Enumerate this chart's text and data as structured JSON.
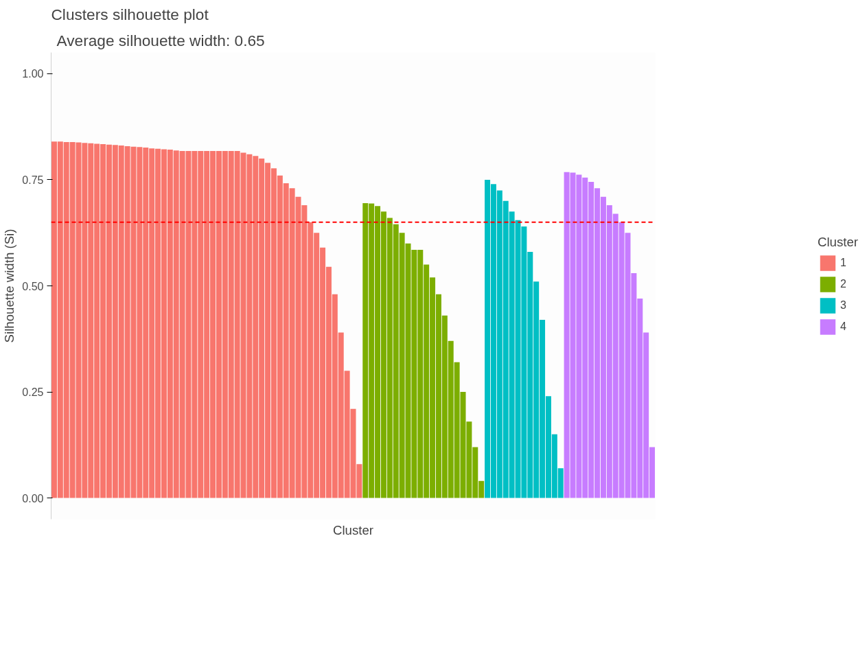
{
  "chart_data": {
    "type": "bar",
    "title": "Clusters silhouette plot",
    "subtitle": "Average silhouette width: 0.65",
    "xlabel": "Cluster",
    "ylabel": "Silhouette width (Si)",
    "legend_title": "Cluster",
    "categories": [
      null,
      null,
      null,
      null,
      null,
      null,
      null,
      null,
      null,
      null,
      null,
      null,
      null,
      null,
      null,
      null,
      null,
      null,
      null,
      null,
      null,
      null,
      null,
      null,
      null,
      null,
      null,
      null,
      null,
      null,
      null,
      null,
      null,
      null,
      null,
      null,
      null,
      null,
      null,
      null,
      null,
      null,
      null,
      null,
      null,
      null,
      null,
      null,
      null,
      null,
      null,
      null,
      null,
      null,
      null,
      null,
      null,
      null,
      null,
      null,
      null,
      null,
      null,
      null,
      null,
      null,
      null,
      null,
      null,
      null,
      null,
      null,
      null,
      null,
      null,
      null,
      null,
      null,
      null,
      null,
      null,
      null,
      null,
      null,
      null,
      null,
      null,
      null,
      null,
      null,
      null,
      null,
      null,
      null,
      null,
      null,
      null,
      null,
      null
    ],
    "series": [
      {
        "name": "1",
        "color": "#f8766d",
        "values": [
          0.84,
          0.84,
          0.839,
          0.839,
          0.838,
          0.837,
          0.836,
          0.835,
          0.834,
          0.833,
          0.832,
          0.831,
          0.829,
          0.828,
          0.827,
          0.826,
          0.824,
          0.823,
          0.822,
          0.821,
          0.819,
          0.818,
          0.818,
          0.818,
          0.818,
          0.818,
          0.818,
          0.818,
          0.818,
          0.818,
          0.818,
          0.814,
          0.81,
          0.806,
          0.8,
          0.79,
          0.777,
          0.76,
          0.742,
          0.73,
          0.71,
          0.69,
          0.65,
          0.625,
          0.59,
          0.545,
          0.48,
          0.39,
          0.3,
          0.21,
          0.08,
          null,
          null,
          null,
          null,
          null,
          null,
          null,
          null,
          null,
          null,
          null,
          null,
          null,
          null,
          null,
          null,
          null,
          null,
          null,
          null,
          null,
          null,
          null,
          null,
          null,
          null,
          null,
          null,
          null,
          null,
          null,
          null,
          null,
          null,
          null,
          null,
          null,
          null,
          null,
          null,
          null,
          null,
          null,
          null,
          null,
          null,
          null,
          null
        ]
      },
      {
        "name": "2",
        "color": "#7cae00",
        "values": [
          null,
          null,
          null,
          null,
          null,
          null,
          null,
          null,
          null,
          null,
          null,
          null,
          null,
          null,
          null,
          null,
          null,
          null,
          null,
          null,
          null,
          null,
          null,
          null,
          null,
          null,
          null,
          null,
          null,
          null,
          null,
          null,
          null,
          null,
          null,
          null,
          null,
          null,
          null,
          null,
          null,
          null,
          null,
          null,
          null,
          null,
          null,
          null,
          null,
          null,
          null,
          0.695,
          0.694,
          0.688,
          0.675,
          0.66,
          0.645,
          0.625,
          0.6,
          0.585,
          0.585,
          0.55,
          0.52,
          0.48,
          0.43,
          0.37,
          0.32,
          0.25,
          0.18,
          0.12,
          0.04,
          null,
          null,
          null,
          null,
          null,
          null,
          null,
          null,
          null,
          null,
          null,
          null,
          null,
          null,
          null,
          null,
          null,
          null,
          null,
          null,
          null,
          null,
          null,
          null,
          null,
          null,
          null,
          null
        ]
      },
      {
        "name": "3",
        "color": "#00bfc4",
        "values": [
          null,
          null,
          null,
          null,
          null,
          null,
          null,
          null,
          null,
          null,
          null,
          null,
          null,
          null,
          null,
          null,
          null,
          null,
          null,
          null,
          null,
          null,
          null,
          null,
          null,
          null,
          null,
          null,
          null,
          null,
          null,
          null,
          null,
          null,
          null,
          null,
          null,
          null,
          null,
          null,
          null,
          null,
          null,
          null,
          null,
          null,
          null,
          null,
          null,
          null,
          null,
          null,
          null,
          null,
          null,
          null,
          null,
          null,
          null,
          null,
          null,
          null,
          null,
          null,
          null,
          null,
          null,
          null,
          null,
          null,
          null,
          0.75,
          0.74,
          0.725,
          0.7,
          0.675,
          0.655,
          0.64,
          0.58,
          0.51,
          0.42,
          0.24,
          0.15,
          0.07,
          null,
          null,
          null,
          null,
          null,
          null,
          null,
          null,
          null,
          null,
          null,
          null,
          null,
          null,
          null
        ]
      },
      {
        "name": "4",
        "color": "#c77cff",
        "values": [
          null,
          null,
          null,
          null,
          null,
          null,
          null,
          null,
          null,
          null,
          null,
          null,
          null,
          null,
          null,
          null,
          null,
          null,
          null,
          null,
          null,
          null,
          null,
          null,
          null,
          null,
          null,
          null,
          null,
          null,
          null,
          null,
          null,
          null,
          null,
          null,
          null,
          null,
          null,
          null,
          null,
          null,
          null,
          null,
          null,
          null,
          null,
          null,
          null,
          null,
          null,
          null,
          null,
          null,
          null,
          null,
          null,
          null,
          null,
          null,
          null,
          null,
          null,
          null,
          null,
          null,
          null,
          null,
          null,
          null,
          null,
          null,
          null,
          null,
          null,
          null,
          null,
          null,
          null,
          null,
          null,
          null,
          null,
          null,
          0.768,
          0.767,
          0.762,
          0.755,
          0.745,
          0.73,
          0.71,
          0.69,
          0.67,
          0.65,
          0.625,
          0.53,
          0.47,
          0.39,
          0.12
        ]
      }
    ],
    "ylim": [
      -0.05,
      1.05
    ],
    "yticks": [
      {
        "value": 0,
        "label": "0.00"
      },
      {
        "value": 0.25,
        "label": "0.25"
      },
      {
        "value": 0.5,
        "label": "0.50"
      },
      {
        "value": 0.75,
        "label": "0.75"
      },
      {
        "value": 1,
        "label": "1.00"
      }
    ],
    "ref_lines": [
      {
        "axis": "y",
        "value": 0.65,
        "color": "#ff0000",
        "line_style": "dashed"
      }
    ],
    "legend": "right",
    "tick_labels": "y",
    "grid": false
  }
}
